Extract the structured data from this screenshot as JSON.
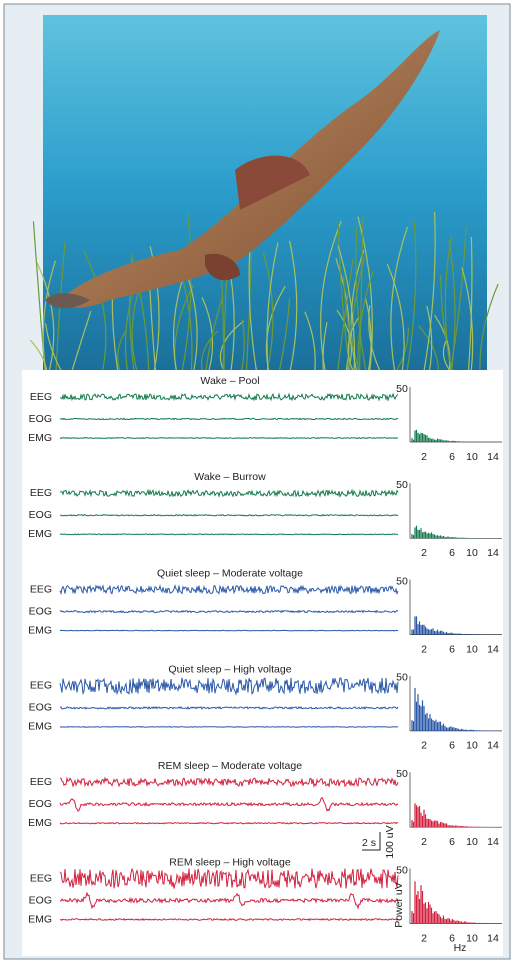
{
  "panels": [
    {
      "title": "Wake – Pool",
      "channels": [
        "EEG",
        "EOG",
        "EMG"
      ],
      "spectrum": {
        "ymax": "50",
        "xticks": [
          "2",
          "6",
          "10",
          "14"
        ]
      }
    },
    {
      "title": "Wake – Burrow",
      "channels": [
        "EEG",
        "EOG",
        "EMG"
      ],
      "spectrum": {
        "ymax": "50",
        "xticks": [
          "2",
          "6",
          "10",
          "14"
        ]
      }
    },
    {
      "title": "Quiet sleep – Moderate voltage",
      "channels": [
        "EEG",
        "EOG",
        "EMG"
      ],
      "spectrum": {
        "ymax": "50",
        "xticks": [
          "2",
          "6",
          "10",
          "14"
        ]
      }
    },
    {
      "title": "Quiet sleep – High voltage",
      "channels": [
        "EEG",
        "EOG",
        "EMG"
      ],
      "spectrum": {
        "ymax": "50",
        "xticks": [
          "2",
          "6",
          "10",
          "14"
        ]
      }
    },
    {
      "title": "REM sleep – Moderate voltage",
      "channels": [
        "EEG",
        "EOG",
        "EMG"
      ],
      "spectrum": {
        "ymax": "50",
        "xticks": [
          "2",
          "6",
          "10",
          "14"
        ]
      }
    },
    {
      "title": "REM sleep – High voltage",
      "channels": [
        "EEG",
        "EOG",
        "EMG"
      ],
      "spectrum": {
        "ymax": "50",
        "xticks": [
          "2",
          "6",
          "10",
          "14"
        ]
      }
    }
  ],
  "scale_bar": {
    "time": "2 s",
    "voltage": "100 uV"
  },
  "spectrum_axis": {
    "y_label": "Power uV",
    "x_label": "Hz"
  }
}
